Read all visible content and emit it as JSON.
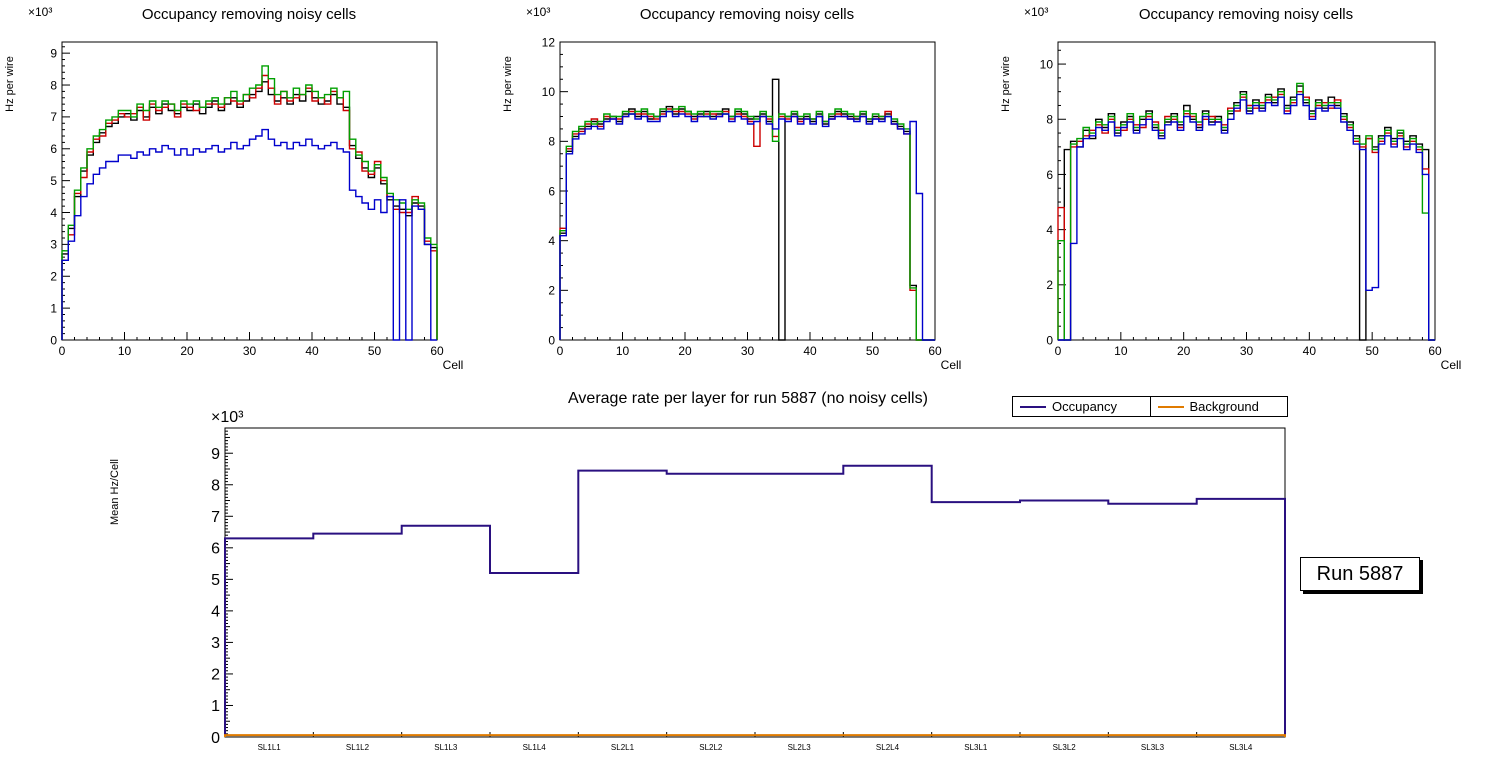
{
  "run_label": "Run 5887",
  "colors": {
    "layer1": "#000000",
    "layer2": "#cc0000",
    "layer3": "#00a000",
    "layer4": "#0000cc",
    "occupancy": "#2a1080",
    "background": "#e07b00"
  },
  "legend": {
    "items": [
      {
        "label": "Occupancy",
        "color": "#2a1080"
      },
      {
        "label": "Background",
        "color": "#e07b00"
      }
    ]
  },
  "chart_data": [
    {
      "type": "line",
      "subtype": "step-histogram",
      "title": "Occupancy removing noisy cells",
      "ylabel": "Hz per wire",
      "xlabel": "Cell",
      "y_exponent": "×10³",
      "xlim": [
        0,
        60
      ],
      "ylim": [
        0,
        9.35
      ],
      "xticks": [
        0,
        10,
        20,
        30,
        40,
        50,
        60
      ],
      "yticks": [
        0,
        1,
        2,
        3,
        4,
        5,
        6,
        7,
        8,
        9
      ],
      "series": [
        {
          "name": "layer1",
          "color": "#000000",
          "values": [
            2.7,
            3.5,
            4.5,
            5.3,
            5.8,
            6.2,
            6.5,
            6.7,
            6.8,
            7.0,
            7.1,
            6.9,
            7.2,
            7.0,
            7.3,
            7.1,
            7.4,
            7.2,
            7.1,
            7.3,
            7.2,
            7.4,
            7.1,
            7.3,
            7.5,
            7.2,
            7.4,
            7.6,
            7.3,
            7.5,
            7.7,
            7.8,
            8.1,
            7.7,
            7.5,
            7.6,
            7.4,
            7.7,
            7.5,
            7.8,
            7.6,
            7.4,
            7.5,
            7.7,
            7.4,
            7.3,
            6.1,
            5.7,
            5.4,
            5.1,
            5.4,
            4.9,
            4.4,
            4.2,
            4.1,
            3.9,
            4.3,
            4.2,
            3.0,
            2.9
          ]
        },
        {
          "name": "layer2",
          "color": "#cc0000",
          "values": [
            2.5,
            3.3,
            4.6,
            5.1,
            5.9,
            6.3,
            6.4,
            6.8,
            6.9,
            7.1,
            7.0,
            7.1,
            7.3,
            6.9,
            7.4,
            7.2,
            7.3,
            7.4,
            7.0,
            7.4,
            7.3,
            7.2,
            7.3,
            7.4,
            7.4,
            7.3,
            7.6,
            7.5,
            7.4,
            7.7,
            7.6,
            7.9,
            8.3,
            7.9,
            7.4,
            7.8,
            7.5,
            7.6,
            7.7,
            7.9,
            7.5,
            7.6,
            7.4,
            7.8,
            7.6,
            7.2,
            6.0,
            5.9,
            5.3,
            5.2,
            5.6,
            5.0,
            4.5,
            4.1,
            4.0,
            4.0,
            4.5,
            4.1,
            3.1,
            2.8
          ]
        },
        {
          "name": "layer3",
          "color": "#00a000",
          "values": [
            2.8,
            3.6,
            4.7,
            5.4,
            6.0,
            6.4,
            6.6,
            6.9,
            7.0,
            7.2,
            7.2,
            7.0,
            7.4,
            7.2,
            7.5,
            7.3,
            7.5,
            7.4,
            7.2,
            7.5,
            7.4,
            7.5,
            7.3,
            7.5,
            7.6,
            7.4,
            7.6,
            7.8,
            7.5,
            7.7,
            7.9,
            8.0,
            8.6,
            8.2,
            7.7,
            7.8,
            7.6,
            7.9,
            7.7,
            8.0,
            7.8,
            7.6,
            7.7,
            7.9,
            7.6,
            7.8,
            6.3,
            5.8,
            5.6,
            5.3,
            5.5,
            5.1,
            4.6,
            4.4,
            4.3,
            4.1,
            4.4,
            4.3,
            3.2,
            3.0
          ]
        },
        {
          "name": "layer4",
          "color": "#0000cc",
          "values": [
            2.5,
            3.1,
            3.9,
            4.5,
            4.9,
            5.2,
            5.4,
            5.6,
            5.6,
            5.8,
            5.8,
            5.7,
            5.9,
            5.8,
            6.0,
            5.9,
            6.1,
            6.0,
            5.8,
            6.0,
            5.8,
            6.0,
            5.9,
            6.0,
            6.1,
            5.9,
            6.0,
            6.2,
            6.0,
            6.1,
            6.3,
            6.4,
            6.6,
            6.3,
            6.1,
            6.2,
            6.0,
            6.2,
            6.1,
            6.3,
            6.1,
            6.0,
            6.1,
            6.2,
            6.0,
            5.9,
            4.7,
            4.5,
            4.3,
            4.1,
            4.4,
            4.0,
            4.5,
            0.0,
            4.4,
            0.0,
            4.2,
            4.1,
            3.0,
            0.0
          ]
        }
      ]
    },
    {
      "type": "line",
      "subtype": "step-histogram",
      "title": "Occupancy removing noisy cells",
      "ylabel": "Hz per wire",
      "xlabel": "Cell",
      "y_exponent": "×10³",
      "xlim": [
        0,
        60
      ],
      "ylim": [
        0,
        12
      ],
      "xticks": [
        0,
        10,
        20,
        30,
        40,
        50,
        60
      ],
      "yticks": [
        0,
        2,
        4,
        6,
        8,
        10,
        12
      ],
      "series": [
        {
          "name": "layer1",
          "color": "#000000",
          "values": [
            4.3,
            7.6,
            8.2,
            8.5,
            8.6,
            8.8,
            8.7,
            8.9,
            9.0,
            8.8,
            9.1,
            9.3,
            9.0,
            9.2,
            8.9,
            9.0,
            9.2,
            9.4,
            9.1,
            9.3,
            9.2,
            9.0,
            9.1,
            9.2,
            9.0,
            9.1,
            9.3,
            9.0,
            9.2,
            9.1,
            8.9,
            9.0,
            9.1,
            8.8,
            10.5,
            0.0,
            9.0,
            9.1,
            8.9,
            9.0,
            8.8,
            9.1,
            8.7,
            9.0,
            9.2,
            9.1,
            9.0,
            8.9,
            9.1,
            8.8,
            9.0,
            8.9,
            9.1,
            8.8,
            8.6,
            8.4,
            2.2,
            0.0,
            0.0,
            0.0
          ]
        },
        {
          "name": "layer2",
          "color": "#cc0000",
          "values": [
            4.5,
            7.7,
            8.3,
            8.4,
            8.7,
            8.9,
            8.6,
            9.0,
            8.9,
            8.9,
            9.0,
            9.2,
            9.1,
            9.1,
            9.0,
            8.9,
            9.1,
            9.3,
            9.2,
            9.2,
            9.1,
            8.9,
            9.0,
            9.1,
            9.1,
            9.0,
            9.2,
            8.9,
            9.1,
            9.0,
            8.8,
            7.8,
            9.0,
            8.9,
            8.2,
            9.0,
            8.9,
            9.0,
            8.8,
            8.9,
            8.9,
            9.0,
            8.8,
            8.9,
            9.1,
            9.0,
            8.9,
            9.0,
            9.0,
            8.9,
            8.9,
            9.0,
            9.2,
            8.7,
            8.5,
            8.3,
            2.0,
            0.0,
            0.0,
            0.0
          ]
        },
        {
          "name": "layer3",
          "color": "#00a000",
          "values": [
            4.4,
            7.8,
            8.4,
            8.6,
            8.8,
            8.7,
            8.8,
            9.1,
            9.0,
            9.0,
            9.2,
            9.1,
            9.2,
            9.3,
            9.1,
            9.0,
            9.3,
            9.2,
            9.3,
            9.4,
            9.2,
            9.1,
            9.2,
            9.0,
            9.2,
            9.2,
            9.1,
            9.0,
            9.3,
            9.2,
            9.0,
            8.9,
            9.2,
            9.0,
            8.0,
            9.1,
            9.0,
            9.2,
            9.0,
            9.1,
            8.9,
            9.2,
            8.8,
            9.1,
            9.3,
            9.2,
            9.1,
            9.0,
            9.2,
            8.9,
            9.1,
            9.0,
            9.0,
            8.9,
            8.7,
            8.5,
            2.1,
            0.0,
            0.0,
            0.0
          ]
        },
        {
          "name": "layer4",
          "color": "#0000cc",
          "values": [
            4.2,
            7.5,
            8.1,
            8.3,
            8.5,
            8.6,
            8.5,
            8.8,
            8.9,
            8.7,
            9.0,
            9.1,
            8.9,
            9.0,
            8.8,
            8.8,
            9.0,
            9.2,
            9.0,
            9.1,
            9.0,
            8.8,
            9.0,
            9.0,
            8.9,
            9.0,
            9.1,
            8.8,
            9.0,
            8.9,
            8.7,
            8.8,
            9.0,
            8.7,
            8.5,
            8.9,
            8.8,
            9.0,
            8.7,
            8.9,
            8.7,
            9.0,
            8.6,
            8.9,
            9.0,
            9.0,
            8.9,
            8.8,
            9.0,
            8.7,
            8.9,
            8.8,
            9.0,
            8.7,
            8.5,
            8.3,
            8.8,
            5.9,
            0.0,
            0.0
          ]
        }
      ]
    },
    {
      "type": "line",
      "subtype": "step-histogram",
      "title": "Occupancy removing noisy cells",
      "ylabel": "Hz per wire",
      "xlabel": "Cell",
      "y_exponent": "×10³",
      "xlim": [
        0,
        60
      ],
      "ylim": [
        0,
        10.8
      ],
      "xticks": [
        0,
        10,
        20,
        30,
        40,
        50,
        60
      ],
      "yticks": [
        0,
        2,
        4,
        6,
        8,
        10
      ],
      "series": [
        {
          "name": "layer1",
          "color": "#000000",
          "values": [
            0.0,
            6.9,
            7.2,
            7.0,
            7.6,
            7.3,
            8.0,
            7.7,
            8.2,
            7.5,
            7.9,
            8.1,
            7.6,
            8.0,
            8.3,
            7.7,
            7.4,
            7.9,
            8.2,
            7.8,
            8.5,
            8.0,
            7.7,
            8.3,
            7.9,
            8.1,
            7.6,
            8.2,
            8.6,
            9.0,
            8.3,
            8.7,
            8.4,
            8.9,
            8.6,
            9.1,
            8.5,
            8.8,
            9.2,
            8.6,
            8.3,
            8.7,
            8.4,
            8.8,
            8.5,
            8.2,
            7.9,
            7.4,
            0.0,
            7.3,
            7.0,
            7.4,
            7.7,
            7.3,
            7.5,
            7.2,
            7.4,
            7.1,
            6.9,
            0.0
          ]
        },
        {
          "name": "layer2",
          "color": "#cc0000",
          "values": [
            4.8,
            0.0,
            7.0,
            7.2,
            7.4,
            7.6,
            7.8,
            7.5,
            8.0,
            7.7,
            7.6,
            8.0,
            7.8,
            7.7,
            8.1,
            7.9,
            7.6,
            8.1,
            8.0,
            7.7,
            8.2,
            8.1,
            7.8,
            8.0,
            8.1,
            7.9,
            7.8,
            8.4,
            8.3,
            8.8,
            8.5,
            8.4,
            8.6,
            8.7,
            8.8,
            8.9,
            8.3,
            8.6,
            9.0,
            8.8,
            8.1,
            8.5,
            8.6,
            8.4,
            8.7,
            8.0,
            7.7,
            7.2,
            7.0,
            7.3,
            6.8,
            7.2,
            7.5,
            7.1,
            7.4,
            7.0,
            7.2,
            6.9,
            6.2,
            0.0
          ]
        },
        {
          "name": "layer3",
          "color": "#00a000",
          "values": [
            3.6,
            0.0,
            7.1,
            7.3,
            7.7,
            7.5,
            7.9,
            7.8,
            8.1,
            7.6,
            7.8,
            8.2,
            7.7,
            8.1,
            8.2,
            7.8,
            7.5,
            8.0,
            8.1,
            7.9,
            8.3,
            8.2,
            7.9,
            8.2,
            8.0,
            8.0,
            7.7,
            8.3,
            8.5,
            8.9,
            8.4,
            8.6,
            8.5,
            8.8,
            8.7,
            9.0,
            8.4,
            8.7,
            9.3,
            8.7,
            8.2,
            8.6,
            8.5,
            8.6,
            8.6,
            8.1,
            7.8,
            7.3,
            7.1,
            7.4,
            6.9,
            7.3,
            7.6,
            7.2,
            7.6,
            7.1,
            7.3,
            7.0,
            4.6,
            0.0
          ]
        },
        {
          "name": "layer4",
          "color": "#0000cc",
          "values": [
            0.0,
            0.0,
            3.5,
            7.0,
            7.3,
            7.4,
            7.7,
            7.6,
            7.9,
            7.4,
            7.7,
            7.9,
            7.5,
            7.8,
            8.0,
            7.6,
            7.3,
            7.8,
            7.9,
            7.6,
            8.1,
            7.9,
            7.6,
            8.1,
            7.8,
            7.9,
            7.5,
            8.0,
            8.4,
            8.7,
            8.2,
            8.5,
            8.3,
            8.6,
            8.5,
            8.8,
            8.2,
            8.5,
            8.9,
            8.5,
            8.0,
            8.4,
            8.3,
            8.5,
            8.4,
            7.9,
            7.6,
            7.1,
            6.9,
            1.8,
            1.9,
            7.1,
            7.4,
            7.0,
            7.3,
            6.9,
            7.1,
            6.8,
            6.0,
            0.0
          ]
        }
      ]
    },
    {
      "type": "line",
      "subtype": "step-bins",
      "title": "Average rate per layer for run 5887 (no noisy cells)",
      "ylabel": "Mean Hz/Cell",
      "xlabel": "",
      "y_exponent": "×10³",
      "ylim": [
        0,
        9.8
      ],
      "yticks": [
        0,
        1,
        2,
        3,
        4,
        5,
        6,
        7,
        8,
        9
      ],
      "categories": [
        "SL1L1",
        "SL1L2",
        "SL1L3",
        "SL1L4",
        "SL2L1",
        "SL2L2",
        "SL2L3",
        "SL2L4",
        "SL3L1",
        "SL3L2",
        "SL3L3",
        "SL3L4"
      ],
      "series": [
        {
          "name": "Occupancy",
          "color": "#2a1080",
          "values": [
            6.3,
            6.45,
            6.7,
            5.2,
            8.45,
            8.35,
            8.35,
            8.6,
            7.45,
            7.5,
            7.4,
            7.55
          ]
        },
        {
          "name": "Background",
          "color": "#e07b00",
          "values": [
            0.06,
            0.06,
            0.06,
            0.06,
            0.06,
            0.06,
            0.06,
            0.06,
            0.06,
            0.06,
            0.06,
            0.06
          ]
        }
      ]
    }
  ]
}
